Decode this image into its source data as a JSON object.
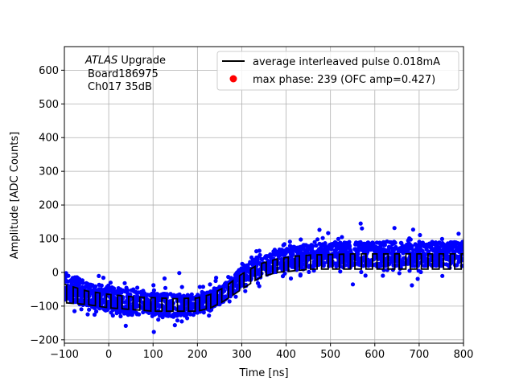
{
  "chart_data": {
    "type": "scatter",
    "xlabel": "Time [ns]",
    "ylabel": "Amplitude [ADC Counts]",
    "xlim": [
      -100,
      800
    ],
    "ylim": [
      -210,
      670
    ],
    "xticks": [
      -100,
      0,
      100,
      200,
      300,
      400,
      500,
      600,
      700,
      800
    ],
    "xtick_labels": [
      "−100",
      "0",
      "100",
      "200",
      "300",
      "400",
      "500",
      "600",
      "700",
      "800"
    ],
    "yticks": [
      -200,
      -100,
      0,
      100,
      200,
      300,
      400,
      500,
      600
    ],
    "ytick_labels": [
      "−200",
      "−100",
      "0",
      "100",
      "200",
      "300",
      "400",
      "500",
      "600"
    ],
    "grid": true,
    "annotation": {
      "line1_italic": "ATLAS",
      "line1_rest": " Upgrade",
      "line2": "Board186975",
      "line3": "Ch017 35dB"
    },
    "legend": {
      "position": "top-right",
      "entries": [
        {
          "label": "average interleaved pulse 0.018mA",
          "marker": "line",
          "color": "#000000"
        },
        {
          "label": "max phase: 239 (OFC amp=0.427)",
          "marker": "dot",
          "color": "#ff0000"
        }
      ]
    },
    "series": [
      {
        "marker": "dot",
        "color": "#0000ff",
        "shape_x": [
          -100,
          -50,
          0,
          50,
          100,
          150,
          200,
          230,
          260,
          300,
          340,
          380,
          420,
          460,
          500,
          550,
          600,
          650,
          700,
          750,
          800
        ],
        "shape_y": [
          -40,
          -65,
          -80,
          -90,
          -95,
          -98,
          -95,
          -85,
          -60,
          -15,
          20,
          35,
          45,
          50,
          52,
          55,
          55,
          55,
          55,
          55,
          55
        ],
        "lower_envelope_y": [
          -100,
          -110,
          -120,
          -125,
          -130,
          -130,
          -130,
          -120,
          -95,
          -60,
          -30,
          -10,
          0,
          5,
          10,
          10,
          10,
          10,
          10,
          10,
          10
        ],
        "upper_envelope_y": [
          40,
          10,
          5,
          0,
          -10,
          -20,
          -30,
          -25,
          -10,
          40,
          80,
          100,
          110,
          120,
          130,
          130,
          130,
          130,
          130,
          130,
          130
        ]
      },
      {
        "name": "average interleaved pulse 0.018mA",
        "marker": "line",
        "color": "#000000",
        "x": [
          -100,
          -50,
          0,
          50,
          100,
          150,
          200,
          230,
          260,
          300,
          340,
          380,
          420,
          460,
          500,
          550,
          600,
          650,
          700,
          750,
          800
        ],
        "y_top": [
          -35,
          -55,
          -65,
          -72,
          -75,
          -78,
          -76,
          -65,
          -45,
          -5,
          25,
          40,
          48,
          52,
          53,
          55,
          55,
          55,
          55,
          55,
          55
        ],
        "y_bottom": [
          -90,
          -95,
          -105,
          -110,
          -115,
          -115,
          -115,
          -105,
          -85,
          -50,
          -15,
          0,
          5,
          10,
          10,
          10,
          10,
          10,
          10,
          10,
          10
        ],
        "period_ns": 25
      }
    ]
  }
}
